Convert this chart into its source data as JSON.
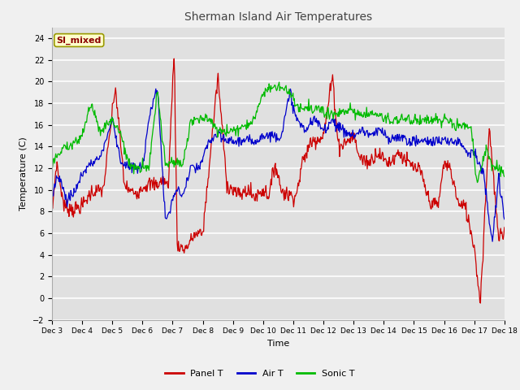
{
  "title": "Sherman Island Air Temperatures",
  "xlabel": "Time",
  "ylabel": "Temperature (C)",
  "ylim": [
    -2,
    25
  ],
  "yticks": [
    -2,
    0,
    2,
    4,
    6,
    8,
    10,
    12,
    14,
    16,
    18,
    20,
    22,
    24
  ],
  "bg_color": "#f0f0f0",
  "plot_bg_color": "#e0e0e0",
  "grid_color": "white",
  "label_box_text": "SI_mixed",
  "label_box_facecolor": "#ffffcc",
  "label_box_edgecolor": "#999900",
  "label_box_textcolor": "#8B0000",
  "colors": {
    "panel": "#cc0000",
    "air": "#0000cc",
    "sonic": "#00bb00"
  },
  "legend_labels": [
    "Panel T",
    "Air T",
    "Sonic T"
  ],
  "n_days": 15,
  "start_day": 3
}
